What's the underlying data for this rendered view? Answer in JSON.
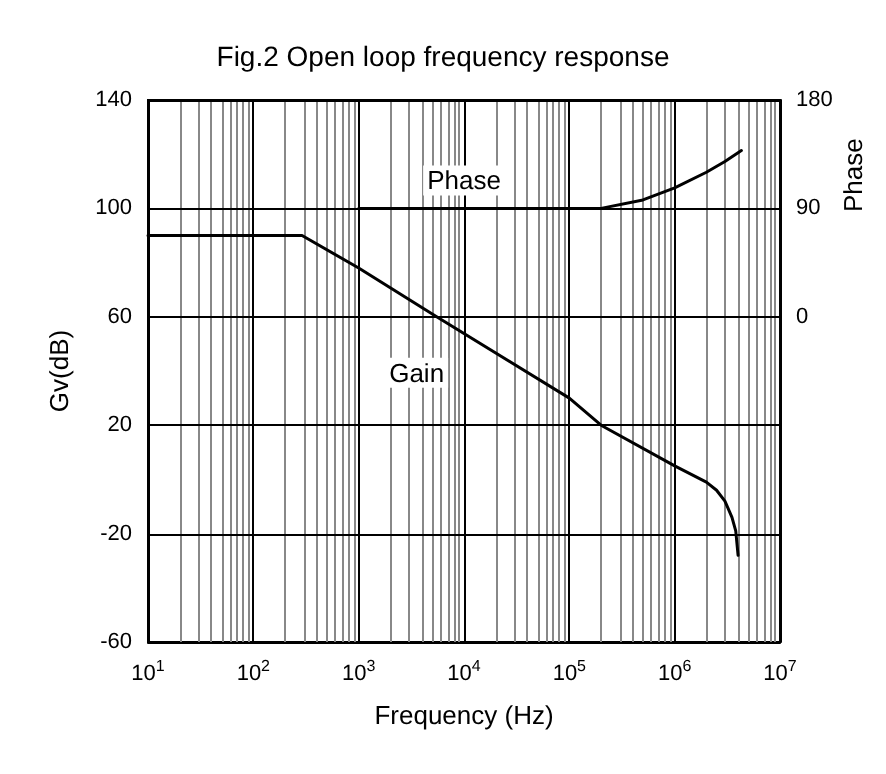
{
  "chart_data": {
    "type": "line",
    "title": "Fig.2 Open loop frequency response",
    "xlabel": "Frequency (Hz)",
    "ylabel": "Gv(dB)",
    "y2label": "Phase",
    "log": "x",
    "grid": true,
    "marker": "none",
    "line_style": "solid",
    "xlim": [
      10,
      10000000
    ],
    "xticks": [
      {
        "value": 10,
        "label": "10$^{1}$"
      },
      {
        "value": 100,
        "label": "10$^{2}$"
      },
      {
        "value": 1000,
        "label": "10$^{3}$"
      },
      {
        "value": 10000,
        "label": "10$^{4}$"
      },
      {
        "value": 100000,
        "label": "10$^{5}$"
      },
      {
        "value": 1000000,
        "label": "10$^{6}$"
      },
      {
        "value": 10000000,
        "label": "10$^{7}$"
      }
    ],
    "ylim": [
      -60,
      140
    ],
    "yticks": [
      -60,
      -20,
      20,
      60,
      100,
      140
    ],
    "y2lim": [
      -270,
      180
    ],
    "y2ticks": [
      0,
      90,
      180
    ],
    "series": [
      {
        "name": "Gain",
        "color": "#000000",
        "x": [
          10,
          290,
          1000,
          5500,
          100000,
          200000,
          1000000,
          2000000,
          2500000,
          3000000,
          3500000,
          3800000,
          4000000
        ],
        "values": [
          90,
          90,
          78,
          60,
          30,
          20,
          5,
          -1,
          -4,
          -8,
          -14,
          -19,
          -28
        ]
      },
      {
        "name": "Phase",
        "color": "#000000",
        "axis": "y2",
        "x": [
          1000,
          10000,
          100000,
          200000,
          500000,
          1000000,
          2000000,
          3000000,
          4300000
        ],
        "values": [
          90,
          90,
          90,
          90,
          97,
          107,
          120,
          129,
          138
        ]
      }
    ]
  }
}
